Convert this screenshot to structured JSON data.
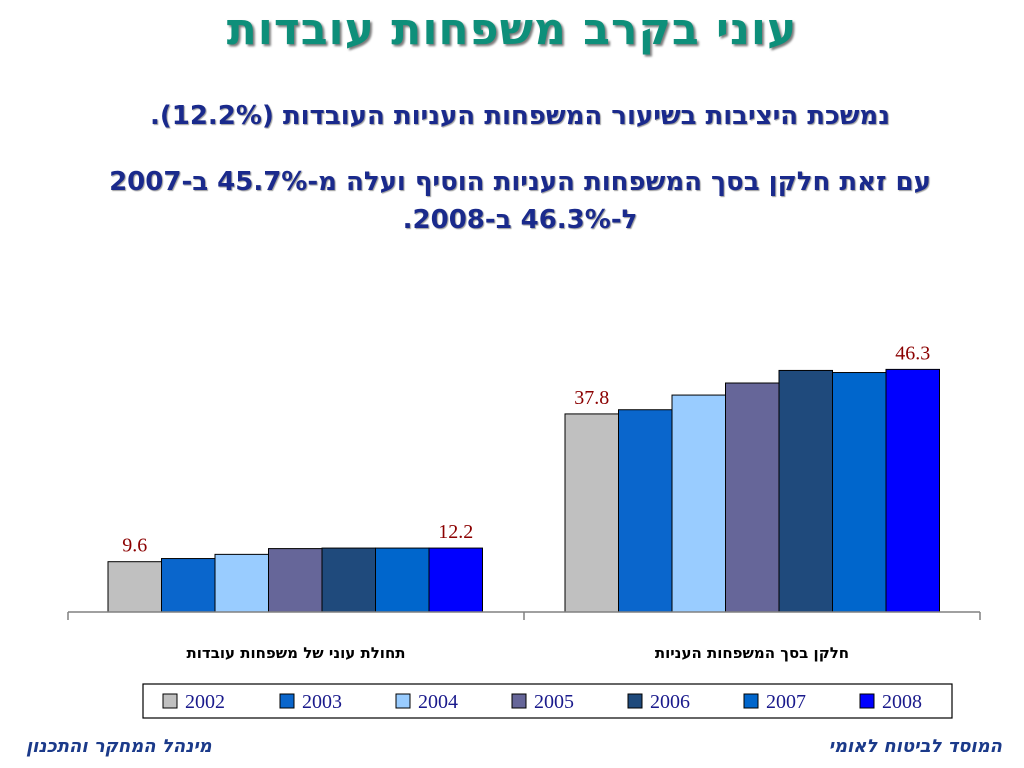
{
  "title": "עוני בקרב משפחות עובדות",
  "subtitle_line1": "נמשכת היציבות בשיעור המשפחות העניות העובדות (12.2%).",
  "subtitle_line2": "עם זאת חלקן בסך המשפחות העניות הוסיף ועלה מ-45.7% ב-2007 ל-46.3% ב-2008.",
  "footer": {
    "left": "מינהל המחקר והתכנון",
    "right": "המוסד לביטוח לאומי"
  },
  "chart_data": {
    "type": "bar",
    "categories": [
      "תחולת עוני של משפחות עובדות",
      "חלקן בסך המשפחות העניות"
    ],
    "series": [
      {
        "name": "2002",
        "color": "#c0c0c0",
        "values": [
          9.6,
          37.8
        ]
      },
      {
        "name": "2003",
        "color": "#0a66cc",
        "values": [
          10.2,
          38.6
        ]
      },
      {
        "name": "2004",
        "color": "#99ccff",
        "values": [
          11.0,
          41.4
        ]
      },
      {
        "name": "2005",
        "color": "#666699",
        "values": [
          12.1,
          43.7
        ]
      },
      {
        "name": "2006",
        "color": "#1f4a7c",
        "values": [
          12.2,
          46.1
        ]
      },
      {
        "name": "2007",
        "color": "#0066cc",
        "values": [
          12.2,
          45.7
        ]
      },
      {
        "name": "2008",
        "color": "#0000ff",
        "values": [
          12.2,
          46.3
        ]
      }
    ],
    "data_labels": [
      {
        "category": 0,
        "series": 0,
        "text": "9.6"
      },
      {
        "category": 0,
        "series": 6,
        "text": "12.2"
      },
      {
        "category": 1,
        "series": 0,
        "text": "37.8"
      },
      {
        "category": 1,
        "series": 6,
        "text": "46.3"
      }
    ],
    "ylim": [
      0,
      50
    ],
    "grid": false,
    "legend_position": "bottom",
    "label_color": "#8b0000"
  }
}
